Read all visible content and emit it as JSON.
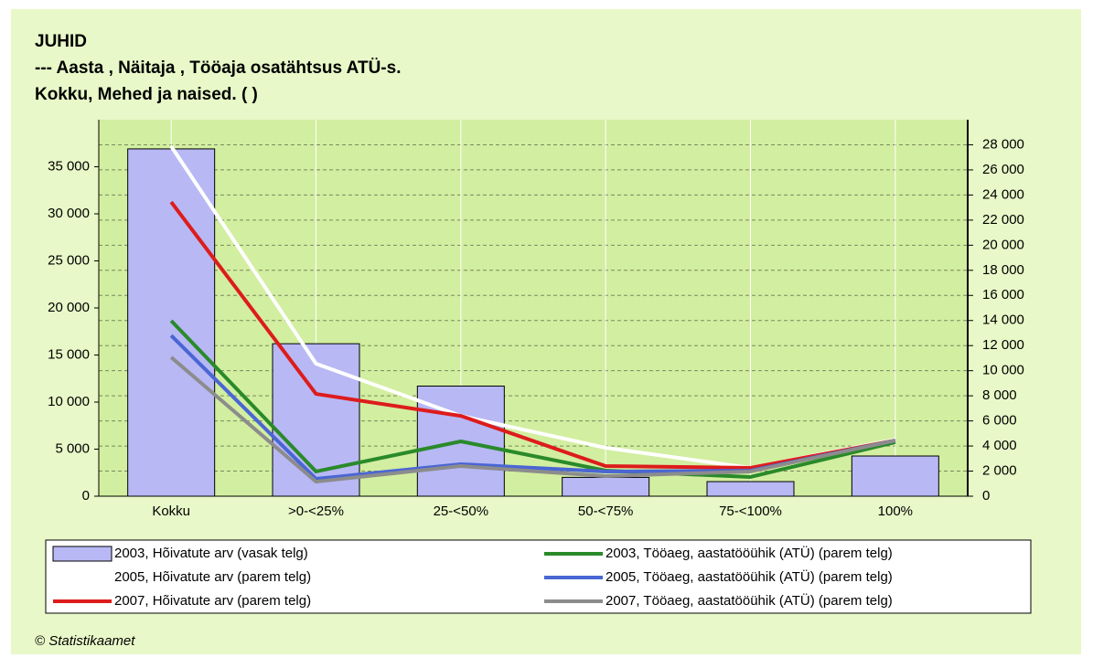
{
  "chart_data": {
    "type": "combo",
    "title": [
      "JUHID",
      "--- Aasta , Näitaja , Tööaja osatähtsus ATÜ-s.",
      "Kokku, Mehed ja naised. ( )"
    ],
    "source": "© Statistikaamet",
    "categories": [
      "Kokku",
      ">0-<25%",
      "25-<50%",
      "50-<75%",
      "75-<100%",
      "100%"
    ],
    "series": [
      {
        "name": "2003, Hõivatute arv (vasak telg)",
        "type": "bar",
        "color": "#b8b8f5",
        "values": [
          36900,
          16200,
          11700,
          2000,
          1550,
          4270
        ]
      },
      {
        "name": "2005, Hõivatute arv (parem telg)",
        "type": "line",
        "axis": "y2",
        "color": "#ffffff",
        "values": [
          27880,
          10560,
          6400,
          3860,
          2260,
          4510
        ]
      },
      {
        "name": "2007, Hõivatute arv (parem telg)",
        "type": "line",
        "axis": "y2",
        "color": "#dd1c1c",
        "values": [
          23440,
          8150,
          6400,
          2400,
          2260,
          4440
        ]
      },
      {
        "name": "2003, Tööaeg, aastatööühik (ATÜ) (parem telg)",
        "type": "line",
        "axis": "y2",
        "color": "#2a8a2a",
        "values": [
          13980,
          1970,
          4370,
          2040,
          1530,
          4300
        ]
      },
      {
        "name": "2005, Tööaeg, aastatööühik (ATÜ) (parem telg)",
        "type": "line",
        "axis": "y2",
        "color": "#4a66d4",
        "values": [
          12800,
          1380,
          2550,
          1970,
          2040,
          4440
        ]
      },
      {
        "name": "2007, Tööaeg, aastatööühik (ATÜ) (parem telg)",
        "type": "line",
        "axis": "y2",
        "color": "#8c8c8c",
        "values": [
          11070,
          1160,
          2400,
          1600,
          1970,
          4440
        ]
      }
    ],
    "ylim": [
      0,
      40000
    ],
    "yticks": [
      0,
      {
        "value": 5000,
        "label": "5 000"
      },
      {
        "value": 10000,
        "label": "10 000"
      },
      {
        "value": 15000,
        "label": "15 000"
      },
      {
        "value": 20000,
        "label": "20 000"
      },
      {
        "value": 25000,
        "label": "25 000"
      },
      {
        "value": 30000,
        "label": "30 000"
      },
      {
        "value": 35000,
        "label": "35 000"
      }
    ],
    "y2lim": [
      0,
      30000
    ],
    "y2ticks": [
      0,
      {
        "value": 2000,
        "label": "2 000"
      },
      {
        "value": 4000,
        "label": "4 000"
      },
      {
        "value": 6000,
        "label": "6 000"
      },
      {
        "value": 8000,
        "label": "8 000"
      },
      {
        "value": 10000,
        "label": "10 000"
      },
      {
        "value": 12000,
        "label": "12 000"
      },
      {
        "value": 14000,
        "label": "14 000"
      },
      {
        "value": 16000,
        "label": "16 000"
      },
      {
        "value": 18000,
        "label": "18 000"
      },
      {
        "value": 20000,
        "label": "20 000"
      },
      {
        "value": 22000,
        "label": "22 000"
      },
      {
        "value": 24000,
        "label": "24 000"
      },
      {
        "value": 26000,
        "label": "26 000"
      },
      {
        "value": 28000,
        "label": "28 000"
      }
    ],
    "grid": true
  }
}
